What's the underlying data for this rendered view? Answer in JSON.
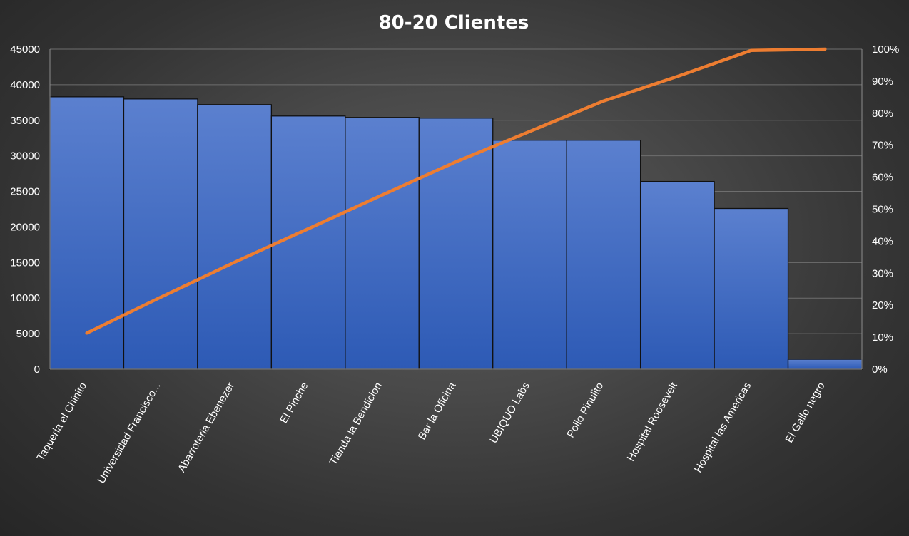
{
  "chart_data": {
    "type": "bar",
    "title": "80-20 Clientes",
    "xlabel": "",
    "ylabel": "",
    "categories": [
      "Taqueria el Chinito",
      "Universidad Francisco...",
      "Abarroteria Ebenezer",
      "El Pinche",
      "Tienda la Bendicion",
      "Bar la Oficina",
      "UBIQUO Labs",
      "Pollo Pinulito",
      "Hospital Roosevelt",
      "Hospital las Americas",
      "El Gallo negro"
    ],
    "series": [
      {
        "type": "bar",
        "axis": "left",
        "color": "#4472c4",
        "values": [
          38300,
          38000,
          37200,
          35600,
          35400,
          35300,
          32200,
          32200,
          26400,
          22600,
          1400
        ]
      },
      {
        "type": "line",
        "axis": "right",
        "color": "#ed7d31",
        "values": [
          0.113,
          0.225,
          0.334,
          0.439,
          0.544,
          0.648,
          0.743,
          0.838,
          0.915,
          0.996,
          1.0
        ]
      }
    ],
    "ylim": [
      0,
      45000
    ],
    "yticks": [
      "0",
      "5000",
      "10000",
      "15000",
      "20000",
      "25000",
      "30000",
      "35000",
      "40000",
      "45000"
    ],
    "y2lim": [
      0,
      1
    ],
    "y2ticks": [
      "0%",
      "10%",
      "20%",
      "30%",
      "40%",
      "50%",
      "60%",
      "70%",
      "80%",
      "90%",
      "100%"
    ],
    "grid": true,
    "legend": "none"
  }
}
